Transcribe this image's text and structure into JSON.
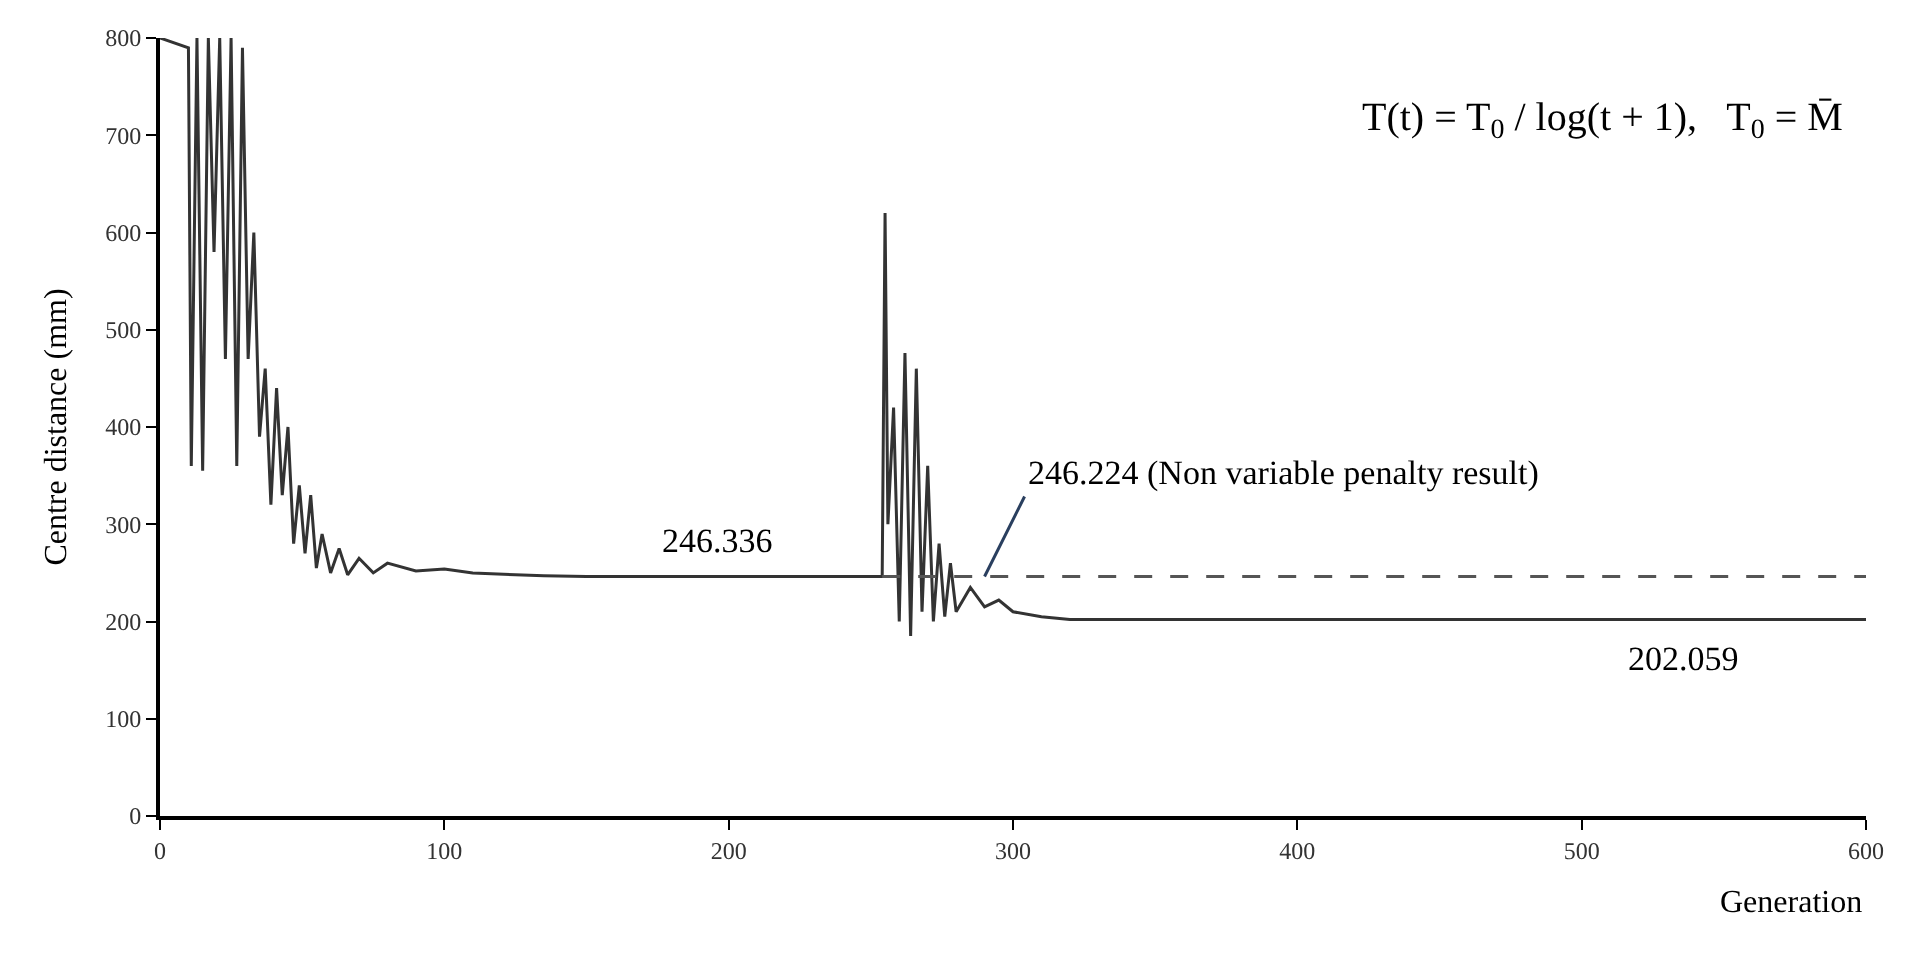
{
  "chart_data": {
    "type": "line",
    "xlabel": "Generation",
    "ylabel": "Centre distance (mm)",
    "xlim": [
      0,
      600
    ],
    "xticks": [
      0,
      100,
      200,
      300,
      400,
      500,
      600
    ],
    "ylim": [
      0,
      800
    ],
    "yticks": [
      0,
      100,
      200,
      300,
      400,
      500,
      600,
      700,
      800
    ],
    "marker": "none",
    "series": [
      {
        "color": "#333333",
        "line_style": "solid",
        "x": [
          0,
          10,
          11,
          13,
          15,
          17,
          19,
          21,
          23,
          25,
          27,
          29,
          31,
          33,
          35,
          37,
          39,
          41,
          43,
          45,
          47,
          49,
          51,
          53,
          55,
          57,
          60,
          63,
          66,
          70,
          75,
          80,
          90,
          100,
          110,
          125,
          135,
          150,
          254,
          255,
          256,
          258,
          260,
          262,
          264,
          266,
          268,
          270,
          272,
          274,
          276,
          278,
          280,
          285,
          290,
          295,
          300,
          310,
          320,
          600
        ],
        "values": [
          800,
          790,
          360,
          800,
          355,
          800,
          580,
          800,
          470,
          800,
          360,
          790,
          470,
          600,
          390,
          460,
          320,
          440,
          330,
          400,
          280,
          340,
          270,
          330,
          255,
          290,
          250,
          275,
          248,
          265,
          250,
          260,
          252,
          254,
          250,
          248,
          247,
          246.336,
          246.336,
          620,
          300,
          420,
          200,
          476,
          185,
          460,
          210,
          360,
          200,
          280,
          205,
          260,
          210,
          235,
          215,
          222,
          210,
          205,
          202.059,
          202.059
        ]
      },
      {
        "color": "#555555",
        "line_style": "dashed",
        "x": [
          254,
          600
        ],
        "values": [
          246.224,
          246.224
        ]
      }
    ],
    "annotations": [
      {
        "text": "246.336",
        "x": 175,
        "y": 246.336
      },
      {
        "text": "246.224 (Non variable penalty result)",
        "x": 290,
        "y": 246.224
      },
      {
        "text": "202.059",
        "x": 515,
        "y": 202.059
      },
      "T(t) = T$_{0}$ / log(t + 1),   T$_{0}$ = M̄"
    ]
  }
}
